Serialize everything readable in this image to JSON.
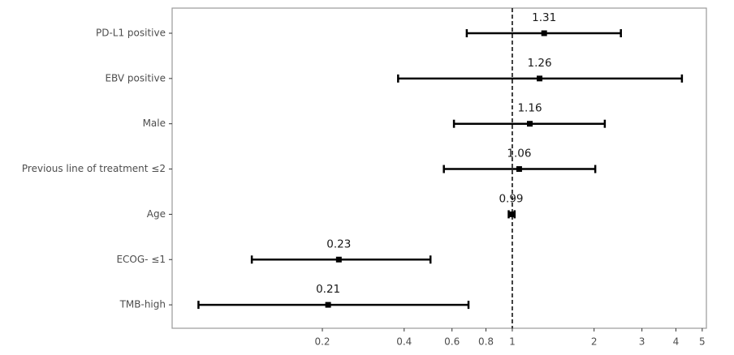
{
  "chart_data": {
    "type": "forest",
    "categories": [
      "PD-L1 positive",
      "EBV positive",
      "Male",
      "Previous line of treatment ≤2",
      "Age",
      "ECOG- ≤1",
      "TMB-high"
    ],
    "values": [
      1.31,
      1.26,
      1.16,
      1.06,
      0.99,
      0.23,
      0.21
    ],
    "lower": [
      0.68,
      0.38,
      0.61,
      0.56,
      0.97,
      0.11,
      0.07
    ],
    "upper": [
      2.51,
      4.21,
      2.19,
      2.02,
      1.02,
      0.5,
      0.69
    ],
    "xlim": [
      0.056,
      5.18
    ],
    "xticks": [
      0.2,
      0.4,
      0.6,
      0.8,
      1,
      2,
      3,
      4,
      5
    ],
    "log_x": true,
    "ref_line": 1,
    "color": "#000000"
  }
}
